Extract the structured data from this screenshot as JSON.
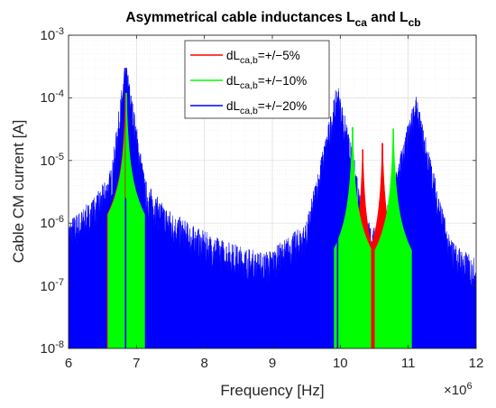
{
  "chart_data": {
    "type": "line",
    "title": {
      "main": "Asymmetrical cable inductances L",
      "sub1": "ca",
      "mid": " and L",
      "sub2": "cb"
    },
    "xlabel": "Frequency   [Hz]",
    "ylabel": "Cable CM current   [A]",
    "x_multiplier": {
      "base": "×10",
      "exp": "6"
    },
    "xlim": [
      6,
      12
    ],
    "ylim": [
      1e-08,
      0.001
    ],
    "yscale": "log",
    "xticks": [
      "6",
      "7",
      "8",
      "9",
      "10",
      "11",
      "12"
    ],
    "yticks": [
      {
        "base": "10",
        "exp": "-3"
      },
      {
        "base": "10",
        "exp": "-4"
      },
      {
        "base": "10",
        "exp": "-5"
      },
      {
        "base": "10",
        "exp": "-6"
      },
      {
        "base": "10",
        "exp": "-7"
      },
      {
        "base": "10",
        "exp": "-8"
      }
    ],
    "grid": true,
    "legend_position": "top-left",
    "series": [
      {
        "name": {
          "pre": "dL",
          "sub": "ca,b",
          "post": "=+/−5%"
        },
        "color": "#ff0000",
        "x": [
          6.84,
          10.33,
          10.55,
          10.62
        ],
        "y": [
          0.00012,
          1.5e-05,
          2e-07,
          1.9e-05
        ]
      },
      {
        "name": {
          "pre": "dL",
          "sub": "ca,b",
          "post": "=+/−10%"
        },
        "color": "#00ff00",
        "x": [
          6.85,
          10.18,
          10.5,
          10.78
        ],
        "y": [
          0.00012,
          3.4e-05,
          2e-07,
          3.2e-05
        ]
      },
      {
        "name": {
          "pre": "dL",
          "sub": "ca,b",
          "post": "=+/−20%"
        },
        "color": "#0000ff",
        "x": [
          6,
          6.5,
          6.84,
          7.2,
          7.5,
          8,
          8.5,
          9,
          9.5,
          9.96,
          10.5,
          11.11,
          11.6,
          12
        ],
        "y": [
          1.6e-07,
          3e-07,
          0.00024,
          9e-07,
          3e-07,
          1.3e-07,
          1.4e-07,
          2.1e-07,
          5.5e-07,
          9.5e-05,
          2e-07,
          6e-05,
          3.5e-07,
          1e-07
        ]
      }
    ]
  }
}
